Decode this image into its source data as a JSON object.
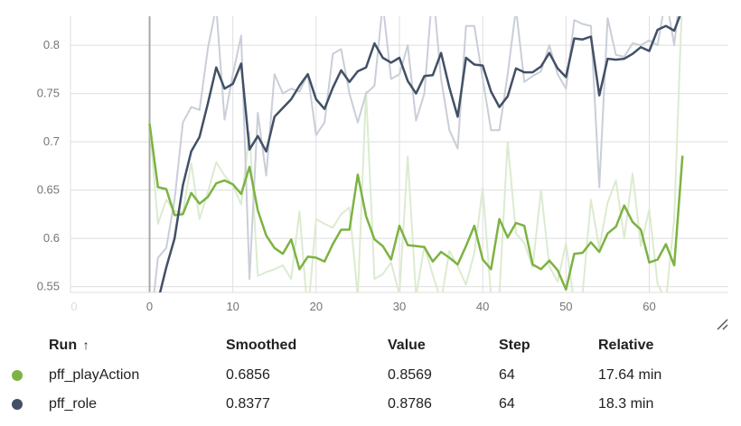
{
  "chart_data": {
    "type": "line",
    "xlabel": "",
    "ylabel": "",
    "xlim": [
      -9.5,
      69.5
    ],
    "ylim": [
      0.544,
      0.83
    ],
    "x_ticks": [
      0,
      10,
      20,
      30,
      40,
      50,
      60
    ],
    "x_ticks_faint": [
      "0"
    ],
    "y_ticks": [
      0.55,
      0.6,
      0.65,
      0.7,
      0.75,
      0.8
    ],
    "grid": true,
    "series": [
      {
        "name": "pff_playAction",
        "color": "#7cb342",
        "raw_color": "#dcebd0",
        "x": [
          0,
          1,
          2,
          3,
          4,
          5,
          6,
          7,
          8,
          9,
          10,
          11,
          12,
          13,
          14,
          15,
          16,
          17,
          18,
          19,
          20,
          21,
          22,
          23,
          24,
          25,
          26,
          27,
          28,
          29,
          30,
          31,
          32,
          33,
          34,
          35,
          36,
          37,
          38,
          39,
          40,
          41,
          42,
          43,
          44,
          45,
          46,
          47,
          48,
          49,
          50,
          51,
          52,
          53,
          54,
          55,
          56,
          57,
          58,
          59,
          60,
          61,
          62,
          63,
          64
        ],
        "raw": [
          0.719,
          0.615,
          0.64,
          0.628,
          0.627,
          0.678,
          0.62,
          0.648,
          0.679,
          0.665,
          0.655,
          0.635,
          0.71,
          0.561,
          0.565,
          0.568,
          0.572,
          0.558,
          0.628,
          0.52,
          0.62,
          0.615,
          0.611,
          0.625,
          0.632,
          0.539,
          0.752,
          0.558,
          0.563,
          0.575,
          0.542,
          0.685,
          0.54,
          0.592,
          0.562,
          0.535,
          0.587,
          0.571,
          0.552,
          0.585,
          0.652,
          0.54,
          0.542,
          0.7,
          0.605,
          0.595,
          0.57,
          0.65,
          0.571,
          0.555,
          0.595,
          0.532,
          0.542,
          0.64,
          0.59,
          0.637,
          0.66,
          0.6,
          0.667,
          0.592,
          0.63,
          0.553,
          0.535,
          0.62,
          0.86
        ],
        "smoothed": [
          0.719,
          0.653,
          0.651,
          0.624,
          0.625,
          0.647,
          0.636,
          0.643,
          0.657,
          0.66,
          0.656,
          0.646,
          0.674,
          0.629,
          0.603,
          0.59,
          0.584,
          0.599,
          0.568,
          0.581,
          0.58,
          0.576,
          0.594,
          0.609,
          0.609,
          0.666,
          0.623,
          0.599,
          0.592,
          0.578,
          0.613,
          0.593,
          0.592,
          0.591,
          0.576,
          0.586,
          0.58,
          0.573,
          0.592,
          0.613,
          0.578,
          0.568,
          0.62,
          0.601,
          0.616,
          0.613,
          0.573,
          0.568,
          0.577,
          0.567,
          0.547,
          0.584,
          0.585,
          0.596,
          0.586,
          0.605,
          0.612,
          0.634,
          0.617,
          0.609,
          0.575,
          0.578,
          0.594,
          0.572,
          0.6856
        ]
      },
      {
        "name": "pff_role",
        "color": "#425066",
        "raw_color": "#c9ced8",
        "x": [
          0,
          1,
          2,
          3,
          4,
          5,
          6,
          7,
          8,
          9,
          10,
          11,
          12,
          13,
          14,
          15,
          16,
          17,
          18,
          19,
          20,
          21,
          22,
          23,
          24,
          25,
          26,
          27,
          28,
          29,
          30,
          31,
          32,
          33,
          34,
          35,
          36,
          37,
          38,
          39,
          40,
          41,
          42,
          43,
          44,
          45,
          46,
          47,
          48,
          49,
          50,
          51,
          52,
          53,
          54,
          55,
          56,
          57,
          58,
          59,
          60,
          61,
          62,
          63,
          64
        ],
        "raw": [
          0.5,
          0.58,
          0.59,
          0.64,
          0.72,
          0.736,
          0.733,
          0.797,
          0.84,
          0.723,
          0.77,
          0.81,
          0.558,
          0.73,
          0.665,
          0.77,
          0.75,
          0.755,
          0.752,
          0.77,
          0.707,
          0.72,
          0.791,
          0.796,
          0.75,
          0.72,
          0.75,
          0.758,
          0.843,
          0.765,
          0.77,
          0.8,
          0.722,
          0.75,
          0.86,
          0.765,
          0.712,
          0.693,
          0.82,
          0.82,
          0.765,
          0.712,
          0.712,
          0.77,
          0.838,
          0.762,
          0.768,
          0.773,
          0.8,
          0.77,
          0.755,
          0.826,
          0.822,
          0.82,
          0.653,
          0.828,
          0.79,
          0.788,
          0.802,
          0.8,
          0.805,
          0.8,
          0.85,
          0.8,
          0.8786
        ],
        "smoothed": [
          0.5,
          0.535,
          0.57,
          0.6,
          0.655,
          0.69,
          0.705,
          0.74,
          0.777,
          0.755,
          0.76,
          0.781,
          0.692,
          0.706,
          0.69,
          0.726,
          0.735,
          0.744,
          0.758,
          0.77,
          0.744,
          0.734,
          0.756,
          0.774,
          0.762,
          0.773,
          0.777,
          0.802,
          0.787,
          0.782,
          0.787,
          0.763,
          0.75,
          0.768,
          0.769,
          0.792,
          0.756,
          0.726,
          0.787,
          0.78,
          0.779,
          0.752,
          0.736,
          0.747,
          0.776,
          0.772,
          0.772,
          0.778,
          0.792,
          0.776,
          0.767,
          0.807,
          0.806,
          0.809,
          0.748,
          0.786,
          0.785,
          0.786,
          0.791,
          0.798,
          0.794,
          0.816,
          0.82,
          0.815,
          0.8377
        ]
      }
    ]
  },
  "table": {
    "headers": {
      "run": "Run",
      "sort_icon": "↑",
      "smoothed": "Smoothed",
      "value": "Value",
      "step": "Step",
      "relative": "Relative"
    },
    "rows": [
      {
        "run": "pff_playAction",
        "color": "#7cb342",
        "smoothed": "0.6856",
        "value": "0.8569",
        "step": "64",
        "relative": "17.64 min"
      },
      {
        "run": "pff_role",
        "color": "#425066",
        "smoothed": "0.8377",
        "value": "0.8786",
        "step": "64",
        "relative": "18.3 min"
      }
    ]
  },
  "icons": {
    "expand": "resize-handle-icon"
  }
}
